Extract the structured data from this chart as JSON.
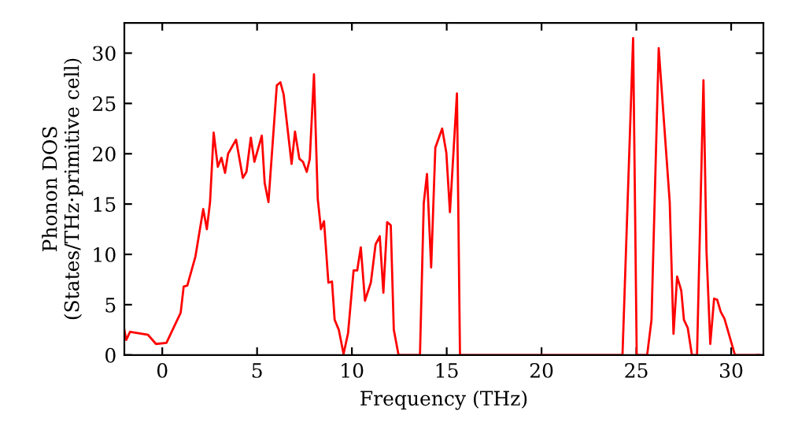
{
  "chart_data": {
    "type": "line",
    "xlabel": "Frequency (THz)",
    "ylabel": "Phonon DOS\n(States/THz·primitive cell)",
    "xlim": [
      -2,
      31.7
    ],
    "ylim": [
      0,
      33
    ],
    "xticks": [
      0,
      5,
      10,
      15,
      20,
      25,
      30
    ],
    "yticks": [
      0,
      5,
      10,
      15,
      20,
      25,
      30
    ],
    "grid": false,
    "marker": "none",
    "line_style": "solid",
    "series": [
      {
        "color": "#ff0000",
        "x": [
          -2,
          -1.9,
          -1.7,
          -0.75,
          -0.33,
          0.22,
          0.97,
          1.13,
          1.32,
          1.75,
          2.16,
          2.35,
          2.52,
          2.71,
          2.93,
          3.12,
          3.31,
          3.47,
          3.89,
          4.25,
          4.44,
          4.67,
          4.86,
          5.25,
          5.4,
          5.6,
          6.04,
          6.23,
          6.4,
          6.82,
          7.0,
          7.23,
          7.42,
          7.62,
          7.78,
          8.0,
          8.2,
          8.37,
          8.53,
          8.76,
          8.95,
          9.09,
          9.31,
          9.56,
          9.8,
          10.09,
          10.28,
          10.47,
          10.69,
          11.0,
          11.25,
          11.47,
          11.66,
          11.86,
          12.05,
          12.21,
          12.46,
          13.59,
          13.79,
          13.96,
          14.18,
          14.4,
          14.76,
          14.98,
          15.17,
          15.54,
          15.7,
          24.27,
          24.83,
          25.02,
          25.57,
          25.8,
          26.18,
          26.76,
          26.96,
          27.15,
          27.37,
          27.51,
          27.71,
          27.93,
          28.2,
          28.54,
          28.7,
          28.9,
          29.1,
          29.26,
          29.45,
          29.65,
          30.2,
          31.5
        ],
        "values": [
          2.5,
          1.5,
          2.3,
          2.0,
          1.1,
          1.2,
          4.2,
          6.8,
          6.9,
          9.8,
          14.5,
          12.5,
          15.2,
          22.1,
          18.7,
          19.6,
          18.1,
          20.0,
          21.4,
          17.6,
          18.2,
          21.6,
          19.2,
          21.8,
          17.1,
          15.2,
          26.8,
          27.1,
          25.9,
          19.0,
          22.2,
          19.5,
          19.2,
          18.2,
          19.5,
          27.9,
          15.5,
          12.5,
          13.3,
          7.2,
          7.3,
          3.5,
          2.5,
          0.1,
          2.2,
          8.4,
          8.4,
          10.7,
          5.4,
          7.2,
          11.0,
          11.8,
          6.2,
          13.2,
          12.9,
          2.5,
          0,
          0,
          15.1,
          18.0,
          8.7,
          20.6,
          22.5,
          20.1,
          14.2,
          26.0,
          0,
          0,
          31.5,
          0,
          0,
          3.5,
          30.5,
          15.2,
          2.1,
          7.8,
          6.4,
          3.5,
          2.7,
          0,
          0,
          27.3,
          10.3,
          1.1,
          5.6,
          5.5,
          4.3,
          3.6,
          0,
          0
        ]
      }
    ]
  }
}
